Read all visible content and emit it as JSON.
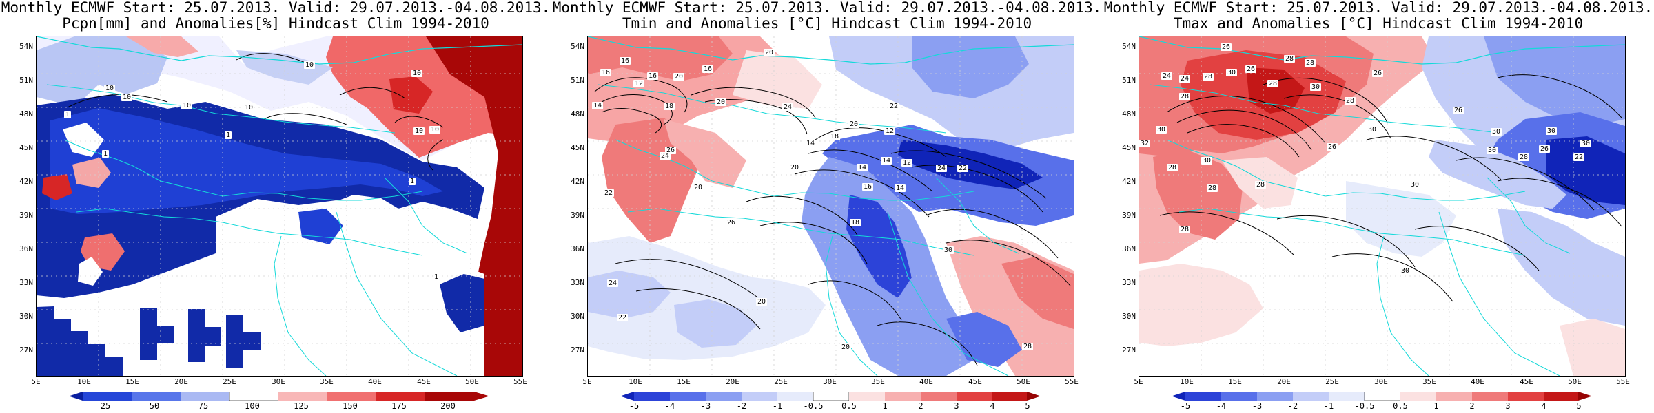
{
  "panels": [
    {
      "title_line1": "Monthly ECMWF Start: 25.07.2013. Valid: 29.07.2013.-04.08.2013.",
      "title_line2": "Pcpn[mm] and Anomalies[%] Hindcast Clim 1994-2010",
      "lat_labels": [
        "54N",
        "51N",
        "48N",
        "45N",
        "42N",
        "39N",
        "36N",
        "33N",
        "30N",
        "27N"
      ],
      "lon_labels": [
        "5E",
        "10E",
        "15E",
        "20E",
        "25E",
        "30E",
        "35E",
        "40E",
        "45E",
        "50E",
        "55E"
      ],
      "colorbar_labels": [
        "25",
        "50",
        "75",
        "100",
        "125",
        "150",
        "175",
        "200"
      ],
      "contour_labels": [
        "10",
        "10",
        "10",
        "10",
        "10",
        "10",
        "10",
        "1",
        "1",
        "1",
        "10",
        "1",
        "1"
      ],
      "scale_colors": [
        "#0a1f9f",
        "#2546d8",
        "#5876ea",
        "#aab9f3",
        "#ffffff",
        "#f8b7b7",
        "#f07070",
        "#d72626",
        "#a80707"
      ]
    },
    {
      "title_line1": "Monthly ECMWF Start: 25.07.2013. Valid: 29.07.2013.-04.08.2013.",
      "title_line2": "Tmin and Anomalies [°C] Hindcast Clim 1994-2010",
      "lat_labels": [
        "54N",
        "51N",
        "48N",
        "45N",
        "42N",
        "39N",
        "36N",
        "33N",
        "30N",
        "27N"
      ],
      "lon_labels": [
        "5E",
        "10E",
        "15E",
        "20E",
        "25E",
        "30E",
        "35E",
        "40E",
        "45E",
        "50E",
        "55E"
      ],
      "colorbar_labels": [
        "-5",
        "-4",
        "-3",
        "-2",
        "-1",
        "-0.5",
        "0.5",
        "1",
        "2",
        "3",
        "4",
        "5"
      ],
      "contour_labels": [
        "16",
        "16",
        "20",
        "16",
        "20",
        "16",
        "12",
        "18",
        "20",
        "14",
        "24",
        "22",
        "14",
        "18",
        "20",
        "12",
        "14",
        "12",
        "16",
        "14",
        "24",
        "22",
        "20",
        "26",
        "22",
        "24",
        "20",
        "26",
        "18",
        "14",
        "20",
        "30",
        "24",
        "22",
        "28",
        "20"
      ],
      "scale_colors": [
        "#1024b8",
        "#2c43d8",
        "#5870ea",
        "#8b9ff2",
        "#c3cdf8",
        "#e6ebfb",
        "#ffffff",
        "#fbe1e1",
        "#f7b0b0",
        "#ef7a7a",
        "#e24141",
        "#c41717",
        "#970404"
      ]
    },
    {
      "title_line1": "Monthly ECMWF Start: 25.07.2013. Valid: 29.07.2013.-04.08.2013.",
      "title_line2": "Tmax and Anomalies [°C] Hindcast Clim 1994-2010",
      "lat_labels": [
        "54N",
        "51N",
        "48N",
        "45N",
        "42N",
        "39N",
        "36N",
        "33N",
        "30N",
        "27N"
      ],
      "lon_labels": [
        "5E",
        "10E",
        "15E",
        "20E",
        "25E",
        "30E",
        "35E",
        "40E",
        "45E",
        "50E",
        "55E"
      ],
      "colorbar_labels": [
        "-5",
        "-4",
        "-3",
        "-2",
        "-1",
        "-0.5",
        "0.5",
        "1",
        "2",
        "3",
        "4",
        "5"
      ],
      "contour_labels": [
        "26",
        "28",
        "28",
        "26",
        "24",
        "24",
        "28",
        "30",
        "28",
        "30",
        "28",
        "26",
        "26",
        "30",
        "30",
        "28",
        "32",
        "22",
        "30",
        "28",
        "30",
        "30",
        "26",
        "30",
        "28",
        "28",
        "30",
        "30",
        "26",
        "28",
        "28",
        "30"
      ],
      "scale_colors": [
        "#1024b8",
        "#2c43d8",
        "#5870ea",
        "#8b9ff2",
        "#c3cdf8",
        "#e6ebfb",
        "#ffffff",
        "#fbe1e1",
        "#f7b0b0",
        "#ef7a7a",
        "#e24141",
        "#c41717",
        "#970404"
      ]
    }
  ]
}
